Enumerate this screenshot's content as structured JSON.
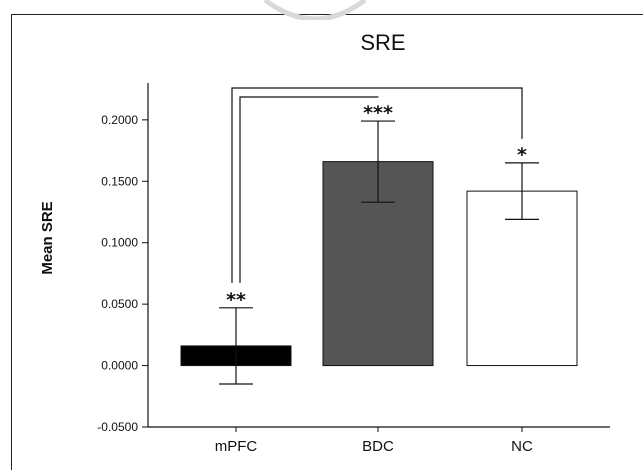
{
  "chart_data": {
    "type": "bar",
    "title": "SRE",
    "xlabel": "",
    "ylabel": "Mean SRE",
    "ylim": [
      -0.05,
      0.23
    ],
    "yticks": [
      "-0.0500",
      "0.0000",
      "0.0500",
      "0.1000",
      "0.1500",
      "0.2000"
    ],
    "ytick_values": [
      -0.05,
      0.0,
      0.05,
      0.1,
      0.15,
      0.2
    ],
    "categories": [
      "mPFC",
      "BDC",
      "NC"
    ],
    "values": [
      0.016,
      0.166,
      0.142
    ],
    "errors": [
      0.031,
      0.033,
      0.023
    ],
    "bar_colors": [
      "#000000",
      "#555555",
      "#ffffff"
    ],
    "significance": [
      "**",
      "***",
      "*"
    ],
    "comparisons": [
      {
        "from": "mPFC",
        "to": "BDC"
      },
      {
        "from": "mPFC",
        "to": "NC"
      }
    ],
    "grid": false,
    "legend": "none"
  }
}
